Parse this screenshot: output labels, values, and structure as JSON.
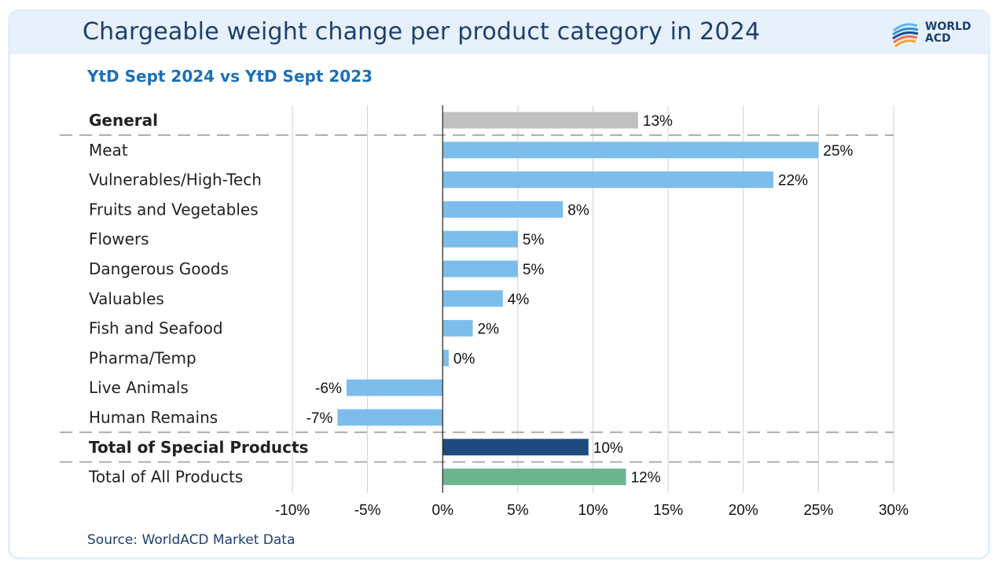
{
  "header": {
    "title": "Chargeable weight change per product category in 2024",
    "logo_line1": "WORLD",
    "logo_line2": "ACD"
  },
  "subtitle": "YtD Sept 2024 vs YtD Sept 2023",
  "source": "Source: WorldACD Market Data",
  "colors": {
    "general": "#c0c0c0",
    "special": "#7dbdec",
    "total_special": "#1f4a7e",
    "total_all": "#6bb592",
    "grid": "#c9d3de",
    "separator": "#b3b3b3"
  },
  "chart_data": {
    "type": "bar",
    "orientation": "horizontal",
    "categories": [
      "General",
      "Meat",
      "Vulnerables/High-Tech",
      "Fruits and Vegetables",
      "Flowers",
      "Dangerous Goods",
      "Valuables",
      "Fish and Seafood",
      "Pharma/Temp",
      "Live Animals",
      "Human Remains",
      "Total of Special Products",
      "Total of All Products"
    ],
    "values": [
      13,
      25,
      22,
      8,
      5,
      5,
      4,
      2,
      0.4,
      -6.4,
      -7,
      9.7,
      12.2
    ],
    "data_labels": [
      "13%",
      "25%",
      "22%",
      "8%",
      "5%",
      "5%",
      "4%",
      "2%",
      "0%",
      "-6%",
      "-7%",
      "10%",
      "12%"
    ],
    "bar_groups": [
      "general",
      "special",
      "special",
      "special",
      "special",
      "special",
      "special",
      "special",
      "special",
      "special",
      "special",
      "total_special",
      "total_all"
    ],
    "bold_categories": [
      "General",
      "Total of Special Products"
    ],
    "xlim": [
      -10,
      30
    ],
    "x_ticks": [
      -10,
      -5,
      0,
      5,
      10,
      15,
      20,
      25,
      30
    ],
    "x_tick_labels": [
      "-10%",
      "-5%",
      "0%",
      "5%",
      "10%",
      "15%",
      "20%",
      "25%",
      "30%"
    ],
    "grid": true,
    "separators_after": [
      "General",
      "Human Remains",
      "Total of Special Products"
    ]
  }
}
